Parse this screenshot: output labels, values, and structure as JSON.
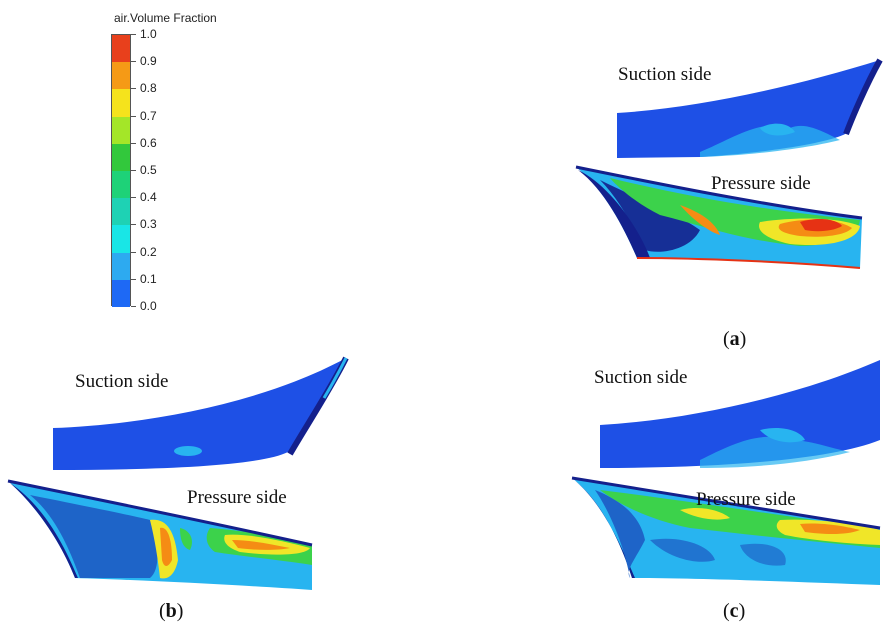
{
  "legend": {
    "title": "air.Volume Fraction",
    "ticks": [
      "1.0",
      "0.9",
      "0.8",
      "0.7",
      "0.6",
      "0.5",
      "0.4",
      "0.3",
      "0.2",
      "0.1",
      "0.0"
    ],
    "colors": [
      "#e8401c",
      "#f59a16",
      "#f5e31c",
      "#a4e628",
      "#32c83c",
      "#1ed278",
      "#1ed2b4",
      "#19e6e6",
      "#2daaf0",
      "#1e69f5"
    ]
  },
  "panels": {
    "a": {
      "suction_label": "Suction side",
      "pressure_label": "Pressure side",
      "caption_open": "(",
      "caption_letter": "a",
      "caption_close": ")"
    },
    "b": {
      "suction_label": "Suction side",
      "pressure_label": "Pressure side",
      "caption_open": "(",
      "caption_letter": "b",
      "caption_close": ")"
    },
    "c": {
      "suction_label": "Suction side",
      "pressure_label": "Pressure side",
      "caption_open": "(",
      "caption_letter": "c",
      "caption_close": ")"
    }
  },
  "colors": {
    "blade_dark": "#14208c",
    "blade_blue": "#1e50e6",
    "blade_cyan": "#28b4f0",
    "blade_green": "#3cd24b",
    "blade_yellow": "#f0e628",
    "blade_orange": "#f58c14",
    "blade_red": "#e63214"
  }
}
